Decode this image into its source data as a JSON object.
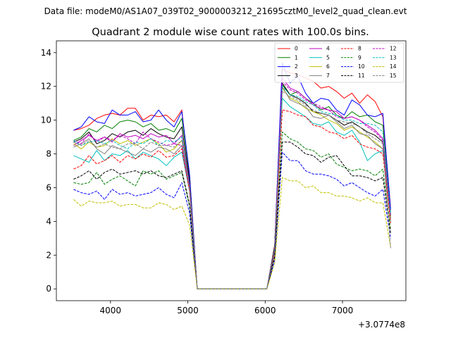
{
  "suptitle": "Data file: modeM0/AS1A07_039T02_9000003212_21695cztM0_level2_quad_clean.evt",
  "chart_data": {
    "type": "line",
    "title": "Quadrant 2 module wise count rates with 100.0s bins.",
    "xlabel": "",
    "ylabel": "",
    "x_offset_label": "+3.0774e8",
    "xlim": [
      3300,
      7820
    ],
    "ylim": [
      -0.7,
      14.7
    ],
    "xticks": [
      4000,
      5000,
      6000,
      7000
    ],
    "xtick_labels": [
      "4000",
      "5000",
      "6000",
      "7000"
    ],
    "yticks": [
      0,
      2,
      4,
      6,
      8,
      10,
      12,
      14
    ],
    "ytick_labels": [
      "0",
      "2",
      "4",
      "6",
      "8",
      "10",
      "12",
      "14"
    ],
    "legend_position": "top-right",
    "x": [
      3522,
      3622,
      3722,
      3822,
      3922,
      4022,
      4122,
      4222,
      4322,
      4422,
      4522,
      4622,
      4722,
      4822,
      4922,
      5022,
      5122,
      5222,
      5322,
      5422,
      5522,
      5622,
      5722,
      5822,
      5922,
      6022,
      6122,
      6222,
      6322,
      6422,
      6522,
      6622,
      6722,
      6822,
      6922,
      7022,
      7122,
      7222,
      7322,
      7422,
      7522,
      7622
    ],
    "series": [
      {
        "name": "0",
        "color": "#ff0000",
        "dash": "solid",
        "values": [
          9.4,
          9.5,
          9.7,
          10.1,
          10.3,
          10.4,
          10.3,
          10.7,
          10.7,
          10.0,
          10.3,
          10.2,
          10.3,
          9.9,
          10.6,
          6.5,
          0,
          0,
          0,
          0,
          0,
          0,
          0,
          0,
          0,
          0,
          2.6,
          13.0,
          12.8,
          12.7,
          12.5,
          12.3,
          11.9,
          12.0,
          11.7,
          11.3,
          11.6,
          11.0,
          11.5,
          11.1,
          10.2,
          4.8
        ]
      },
      {
        "name": "1",
        "color": "#008000",
        "dash": "solid",
        "values": [
          8.8,
          9.0,
          9.5,
          9.3,
          9.7,
          9.5,
          9.9,
          10.0,
          9.9,
          9.6,
          9.8,
          9.4,
          9.5,
          9.3,
          10.1,
          6.7,
          0,
          0,
          0,
          0,
          0,
          0,
          0,
          0,
          0,
          0,
          2.4,
          12.1,
          11.5,
          11.7,
          11.3,
          11.0,
          10.6,
          10.8,
          10.3,
          10.1,
          10.5,
          10.2,
          10.3,
          9.9,
          9.7,
          4.5
        ]
      },
      {
        "name": "2",
        "color": "#0000ff",
        "dash": "solid",
        "values": [
          9.4,
          9.6,
          10.2,
          9.9,
          9.8,
          10.6,
          10.3,
          10.3,
          10.5,
          9.9,
          10.0,
          10.6,
          10.0,
          9.6,
          10.5,
          6.8,
          0,
          0,
          0,
          0,
          0,
          0,
          0,
          0,
          0,
          0,
          2.5,
          13.4,
          12.2,
          12.6,
          11.6,
          11.0,
          11.3,
          11.2,
          10.6,
          10.3,
          11.2,
          10.9,
          10.3,
          10.2,
          10.4,
          4.7
        ]
      },
      {
        "name": "3",
        "color": "#000000",
        "dash": "solid",
        "values": [
          8.7,
          8.9,
          9.3,
          8.6,
          8.8,
          9.2,
          9.0,
          9.3,
          9.4,
          9.1,
          9.5,
          9.2,
          9.0,
          8.9,
          9.6,
          6.4,
          0,
          0,
          0,
          0,
          0,
          0,
          0,
          0,
          0,
          0,
          2.5,
          12.2,
          11.5,
          11.3,
          11.0,
          10.5,
          10.4,
          10.3,
          10.0,
          9.7,
          9.9,
          9.6,
          9.3,
          9.1,
          8.7,
          4.3
        ]
      },
      {
        "name": "4",
        "color": "#bf00bf",
        "dash": "solid",
        "values": [
          8.5,
          8.8,
          9.1,
          8.8,
          9.0,
          8.7,
          9.2,
          9.0,
          9.1,
          8.9,
          9.2,
          9.0,
          9.1,
          8.6,
          9.1,
          6.2,
          0,
          0,
          0,
          0,
          0,
          0,
          0,
          0,
          0,
          0,
          2.3,
          12.5,
          11.9,
          11.7,
          11.3,
          10.9,
          10.7,
          10.6,
          10.5,
          10.1,
          10.2,
          10.0,
          9.7,
          9.4,
          8.9,
          4.4
        ]
      },
      {
        "name": "5",
        "color": "#00bfbf",
        "dash": "solid",
        "values": [
          7.9,
          7.7,
          7.5,
          8.2,
          7.6,
          8.0,
          7.9,
          8.2,
          7.7,
          8.1,
          7.9,
          7.7,
          7.3,
          7.8,
          8.1,
          5.8,
          0,
          0,
          0,
          0,
          0,
          0,
          0,
          0,
          0,
          0,
          2.2,
          11.3,
          10.8,
          10.5,
          10.2,
          9.8,
          9.7,
          9.9,
          9.3,
          9.1,
          9.4,
          8.7,
          7.6,
          8.0,
          8.2,
          4.0
        ]
      },
      {
        "name": "6",
        "color": "#bfbf00",
        "dash": "solid",
        "values": [
          8.6,
          8.3,
          8.7,
          8.4,
          8.5,
          8.9,
          8.6,
          8.8,
          8.5,
          8.7,
          8.9,
          8.6,
          8.1,
          8.3,
          8.8,
          6.0,
          0,
          0,
          0,
          0,
          0,
          0,
          0,
          0,
          0,
          0,
          2.3,
          11.9,
          11.3,
          11.1,
          10.7,
          10.5,
          10.3,
          10.0,
          9.8,
          9.4,
          9.6,
          9.3,
          9.0,
          8.7,
          8.3,
          4.2
        ]
      },
      {
        "name": "7",
        "color": "#808080",
        "dash": "solid",
        "values": [
          8.4,
          8.6,
          8.9,
          8.3,
          8.0,
          8.5,
          8.3,
          8.1,
          7.9,
          8.3,
          8.1,
          8.4,
          8.3,
          8.0,
          8.5,
          5.9,
          0,
          0,
          0,
          0,
          0,
          0,
          0,
          0,
          0,
          0,
          2.2,
          12.0,
          11.2,
          11.0,
          10.8,
          10.2,
          10.1,
          10.3,
          9.9,
          9.5,
          9.7,
          9.2,
          9.1,
          8.6,
          8.3,
          4.1
        ]
      },
      {
        "name": "8",
        "color": "#ff0000",
        "dash": "dashed",
        "values": [
          7.1,
          7.3,
          7.9,
          7.4,
          7.6,
          7.9,
          7.5,
          7.9,
          7.7,
          8.0,
          7.8,
          8.2,
          7.8,
          7.9,
          8.3,
          5.8,
          0,
          0,
          0,
          0,
          0,
          0,
          0,
          0,
          0,
          0,
          2.1,
          10.6,
          10.5,
          10.3,
          10.2,
          9.7,
          9.6,
          9.3,
          9.2,
          8.9,
          9.1,
          8.6,
          8.4,
          8.3,
          8.0,
          3.9
        ]
      },
      {
        "name": "9",
        "color": "#008000",
        "dash": "dashed",
        "values": [
          6.3,
          6.2,
          6.3,
          6.9,
          6.2,
          6.5,
          6.7,
          6.4,
          6.1,
          7.0,
          6.8,
          7.0,
          6.5,
          6.7,
          6.9,
          4.9,
          0,
          0,
          0,
          0,
          0,
          0,
          0,
          0,
          0,
          0,
          1.9,
          9.3,
          8.9,
          8.7,
          8.3,
          8.2,
          7.8,
          8.0,
          7.4,
          7.2,
          7.0,
          7.1,
          7.0,
          6.7,
          7.1,
          3.5
        ]
      },
      {
        "name": "10",
        "color": "#0000ff",
        "dash": "dashed",
        "values": [
          5.9,
          5.7,
          5.6,
          5.8,
          5.3,
          5.9,
          5.6,
          5.7,
          5.5,
          5.6,
          5.7,
          6.0,
          5.6,
          5.4,
          6.3,
          4.5,
          0,
          0,
          0,
          0,
          0,
          0,
          0,
          0,
          0,
          0,
          1.7,
          8.1,
          7.6,
          7.6,
          7.0,
          6.8,
          6.8,
          6.7,
          6.5,
          6.1,
          6.3,
          6.0,
          5.7,
          5.5,
          5.9,
          3.0
        ]
      },
      {
        "name": "11",
        "color": "#000000",
        "dash": "dashed",
        "values": [
          6.5,
          6.7,
          7.0,
          6.5,
          6.9,
          7.1,
          6.8,
          6.9,
          7.0,
          6.8,
          7.0,
          6.7,
          6.6,
          6.8,
          7.0,
          5.0,
          0,
          0,
          0,
          0,
          0,
          0,
          0,
          0,
          0,
          0,
          1.9,
          8.7,
          8.7,
          8.4,
          8.0,
          7.9,
          7.5,
          7.8,
          7.9,
          7.3,
          6.7,
          6.7,
          6.6,
          6.4,
          6.6,
          3.3
        ]
      },
      {
        "name": "12",
        "color": "#bf00bf",
        "dash": "dashed",
        "values": [
          8.8,
          8.6,
          9.2,
          8.7,
          9.0,
          8.8,
          9.1,
          8.9,
          8.6,
          9.3,
          8.9,
          8.7,
          8.5,
          8.6,
          8.5,
          6.0,
          0,
          0,
          0,
          0,
          0,
          0,
          0,
          0,
          0,
          0,
          2.3,
          12.3,
          11.8,
          11.6,
          11.2,
          11.0,
          10.8,
          10.6,
          10.2,
          10.1,
          10.2,
          10.0,
          9.6,
          9.3,
          8.8,
          4.3
        ]
      },
      {
        "name": "13",
        "color": "#00bfbf",
        "dash": "dashed",
        "values": [
          8.8,
          8.5,
          8.7,
          8.8,
          8.6,
          8.8,
          8.5,
          8.3,
          8.7,
          8.6,
          8.9,
          8.5,
          8.8,
          8.7,
          9.0,
          6.1,
          0,
          0,
          0,
          0,
          0,
          0,
          0,
          0,
          0,
          0,
          2.4,
          12.0,
          11.5,
          11.4,
          11.1,
          10.9,
          10.5,
          10.4,
          10.3,
          10.0,
          10.0,
          9.8,
          9.8,
          9.7,
          9.3,
          4.4
        ]
      },
      {
        "name": "14",
        "color": "#bfbf00",
        "dash": "dashed",
        "values": [
          5.3,
          4.9,
          5.2,
          5.1,
          5.1,
          5.2,
          4.9,
          5.0,
          5.0,
          4.8,
          4.8,
          5.1,
          5.0,
          4.7,
          4.9,
          3.8,
          0,
          0,
          0,
          0,
          0,
          0,
          0,
          0,
          0,
          0,
          1.5,
          6.6,
          6.4,
          6.4,
          6.0,
          6.1,
          5.7,
          5.7,
          5.5,
          5.5,
          5.4,
          5.2,
          5.4,
          5.1,
          5.1,
          2.5
        ]
      },
      {
        "name": "15",
        "color": "#808080",
        "dash": "dashed",
        "values": [
          8.7,
          8.5,
          8.8,
          8.4,
          8.6,
          8.4,
          8.3,
          8.6,
          8.6,
          8.3,
          8.7,
          8.5,
          8.5,
          8.4,
          8.8,
          6.0,
          0,
          0,
          0,
          0,
          0,
          0,
          0,
          0,
          0,
          0,
          2.3,
          11.7,
          11.4,
          11.2,
          10.9,
          10.6,
          10.4,
          10.3,
          10.0,
          9.9,
          9.8,
          9.6,
          9.2,
          8.9,
          8.6,
          2.4
        ]
      }
    ]
  }
}
